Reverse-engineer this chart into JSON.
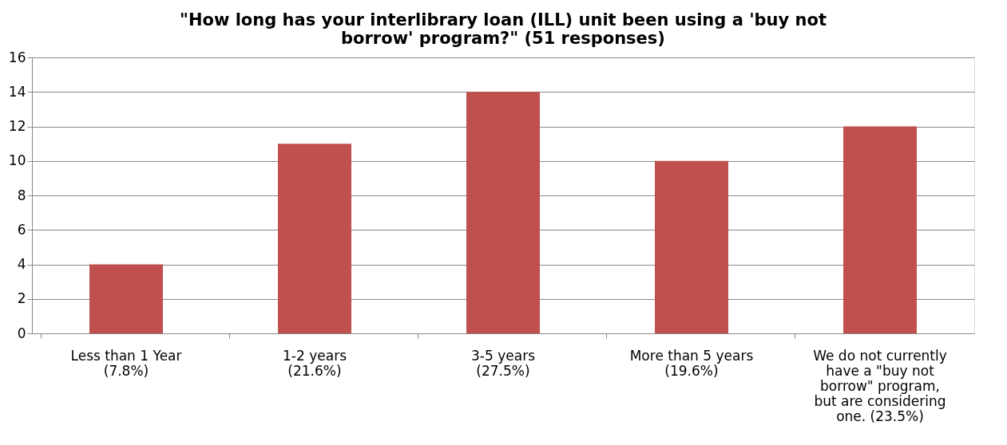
{
  "chart_data": {
    "type": "bar",
    "title": "\"How long has your interlibrary loan (ILL) unit been using a 'buy not borrow' program?\" (51 responses)",
    "categories": [
      "Less than 1 Year (7.8%)",
      "1-2 years (21.6%)",
      "3-5 years (27.5%)",
      "More than 5 years (19.6%)",
      "We do not currently have a \"buy not borrow\" program, but are considering one. (23.5%)"
    ],
    "values": [
      4,
      11,
      14,
      10,
      12
    ],
    "color": "#c0504d",
    "ylim": [
      0,
      16
    ],
    "yticks": [
      0,
      2,
      4,
      6,
      8,
      10,
      12,
      14,
      16
    ],
    "grid": "y"
  }
}
